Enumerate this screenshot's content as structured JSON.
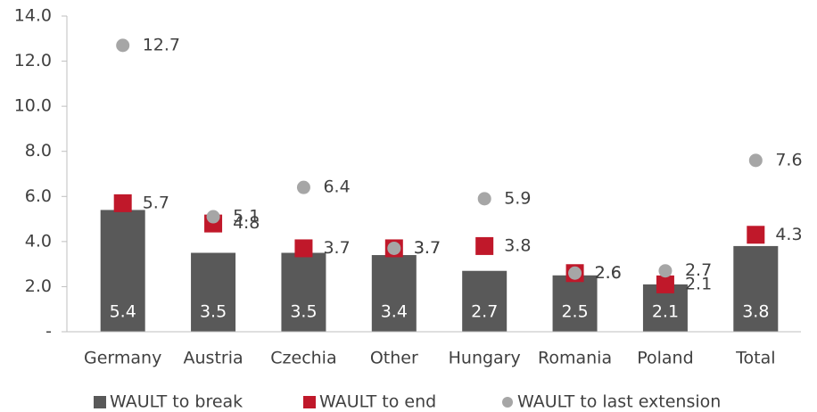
{
  "chart_data": {
    "type": "bar",
    "categories": [
      "Germany",
      "Austria",
      "Czechia",
      "Other",
      "Hungary",
      "Romania",
      "Poland",
      "Total"
    ],
    "series": [
      {
        "name": "WAULT to break",
        "marker": "bar",
        "color": "#595959",
        "values": [
          5.4,
          3.5,
          3.5,
          3.4,
          2.7,
          2.5,
          2.1,
          3.8
        ]
      },
      {
        "name": "WAULT to end",
        "marker": "square",
        "color": "#c0182a",
        "values": [
          5.7,
          4.8,
          3.7,
          3.7,
          3.8,
          2.6,
          2.1,
          4.3
        ]
      },
      {
        "name": "WAULT to last extension",
        "marker": "circle",
        "color": "#a6a6a6",
        "values": [
          12.7,
          5.1,
          6.4,
          3.7,
          5.9,
          2.6,
          2.7,
          7.6
        ]
      }
    ],
    "ylim": [
      0,
      14
    ],
    "yticks": [
      {
        "value": 0,
        "label": "-"
      },
      {
        "value": 2,
        "label": "2.0"
      },
      {
        "value": 4,
        "label": "4.0"
      },
      {
        "value": 6,
        "label": "6.0"
      },
      {
        "value": 8,
        "label": "8.0"
      },
      {
        "value": 10,
        "label": "10.0"
      },
      {
        "value": 12,
        "label": "12.0"
      },
      {
        "value": 14,
        "label": "14.0"
      }
    ],
    "grid": false,
    "legend": "bottom"
  }
}
